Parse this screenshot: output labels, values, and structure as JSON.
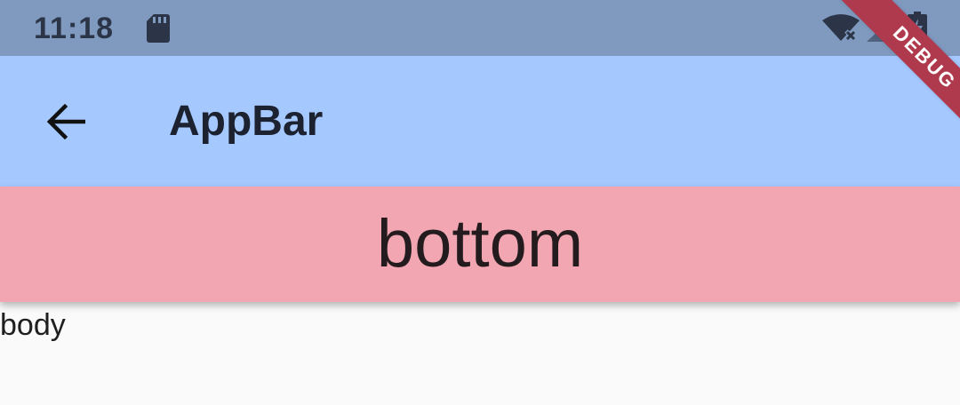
{
  "status_bar": {
    "time": "11:18",
    "icons": {
      "storage": "sd-card-icon",
      "wifi": "wifi-off-icon",
      "signal": "cell-signal-icon",
      "battery": "battery-charging-icon"
    }
  },
  "app_bar": {
    "title": "AppBar",
    "back_icon": "arrow-back-icon"
  },
  "bottom": {
    "label": "bottom"
  },
  "body": {
    "text": "body"
  },
  "banner": {
    "label": "DEBUG"
  },
  "colors": {
    "status_bar": "#7f99bf",
    "app_bar": "#a5c9ff",
    "bottom_bar": "#f2a6b1",
    "body_background": "#fafafa",
    "debug_banner": "#b03a4d"
  }
}
